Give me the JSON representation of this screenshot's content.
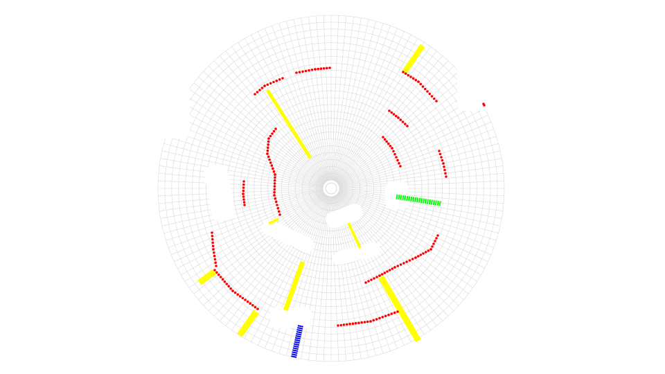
{
  "view": {
    "kind": "polar-occupancy-grid",
    "background": "#ffffff",
    "grid_color": "#d9d9d9",
    "cells": {
      "rings": 24,
      "sectors": 144
    }
  },
  "colors": {
    "obstacle": "#ff0000",
    "path": "#ffff00",
    "target": "#00ff00",
    "vehicle": "#0000ff"
  },
  "legend_labels": []
}
